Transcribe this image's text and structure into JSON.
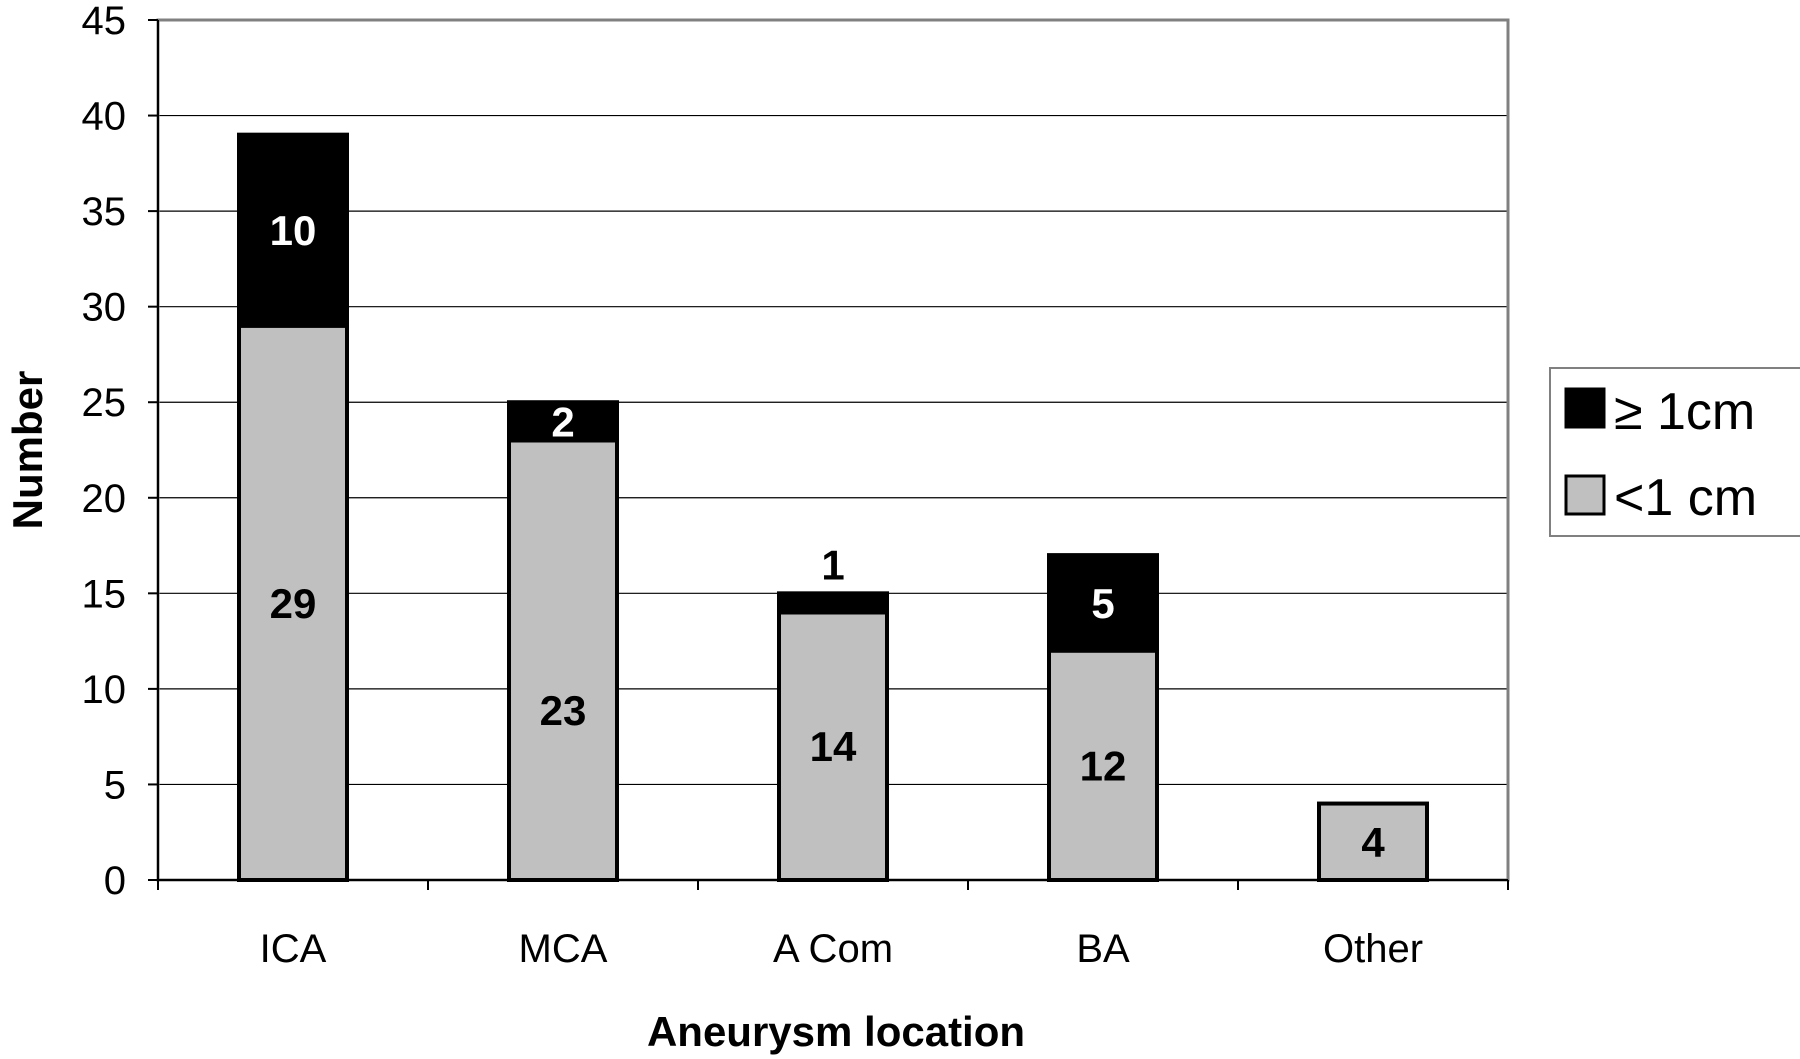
{
  "chart_data": {
    "type": "bar",
    "stacked": true,
    "title": "",
    "xlabel": "Aneurysm location",
    "ylabel": "Number",
    "ylim": [
      0,
      45
    ],
    "yticks": [
      0,
      5,
      10,
      15,
      20,
      25,
      30,
      35,
      40,
      45
    ],
    "grid": true,
    "legend_position": "right",
    "categories": [
      "ICA",
      "MCA",
      "A Com",
      "BA",
      "Other"
    ],
    "series": [
      {
        "name": "<1 cm",
        "values": [
          29,
          23,
          14,
          12,
          4
        ],
        "color": "#c0c0c0"
      },
      {
        "name": "≥ 1cm",
        "values": [
          10,
          2,
          1,
          5,
          0
        ],
        "color": "#000000"
      }
    ],
    "legend": [
      {
        "label": "≥ 1cm",
        "color": "#000000"
      },
      {
        "label": "<1 cm",
        "color": "#c0c0c0"
      }
    ]
  }
}
